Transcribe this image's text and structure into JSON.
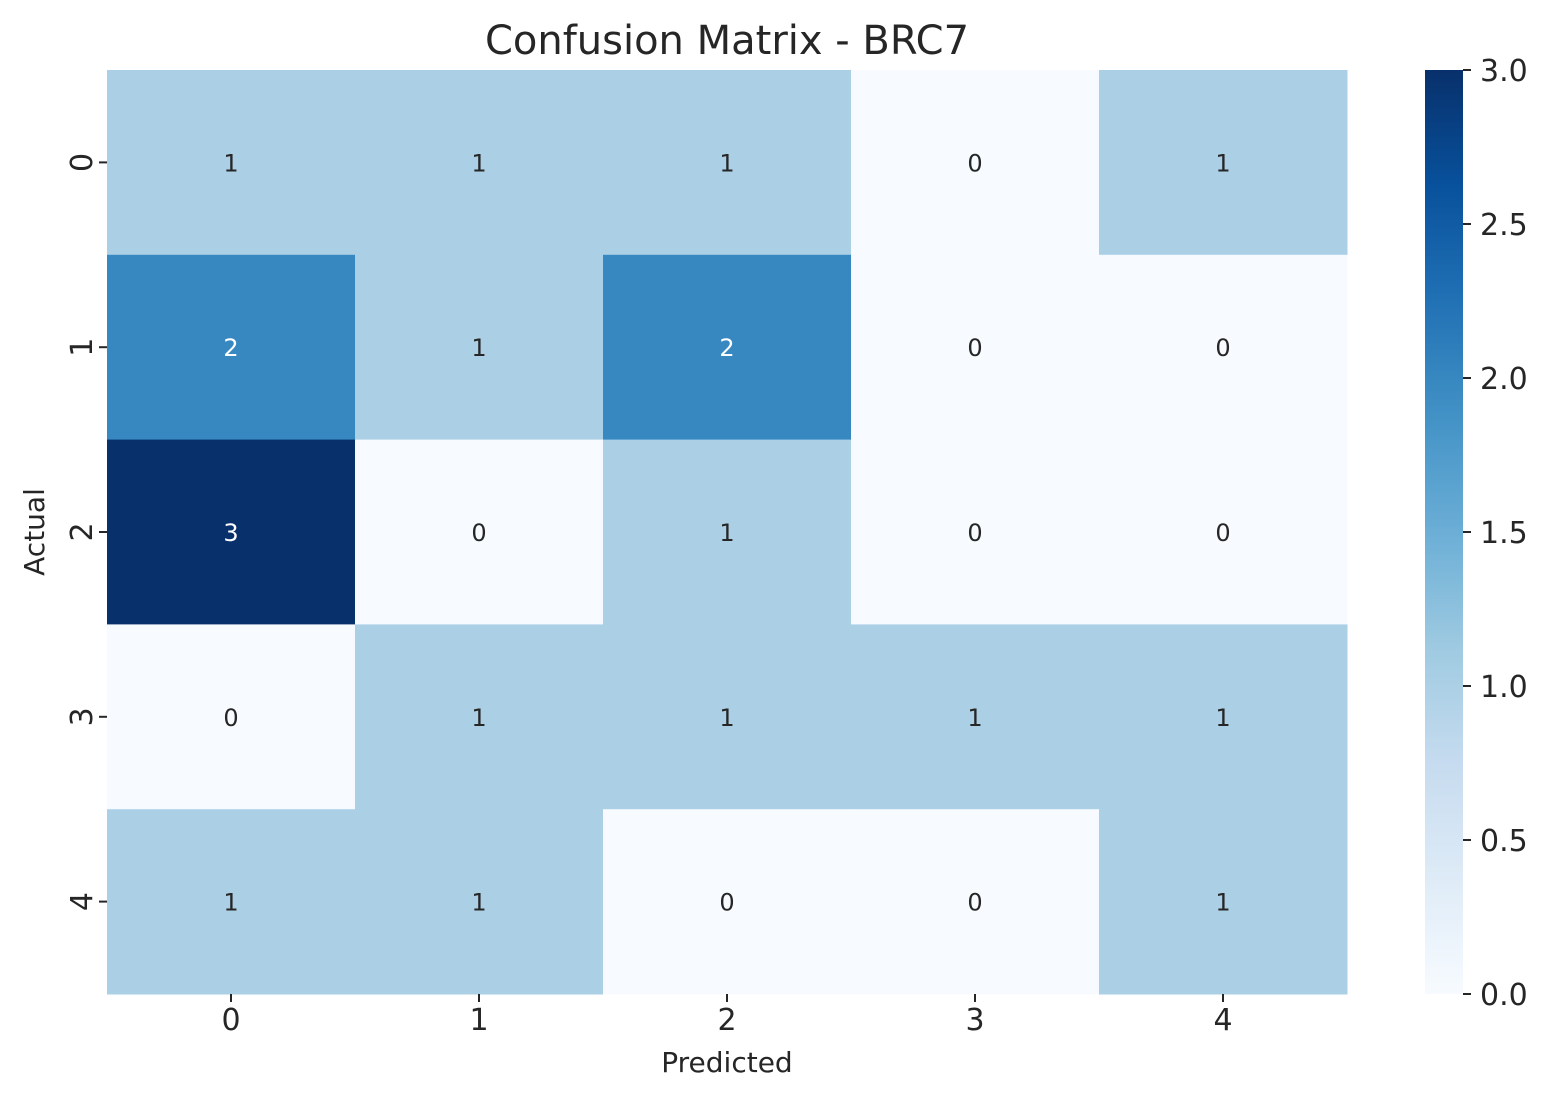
{
  "chart_data": {
    "type": "heatmap",
    "title": "Confusion Matrix - BRC7",
    "xlabel": "Predicted",
    "ylabel": "Actual",
    "x_categories": [
      "0",
      "1",
      "2",
      "3",
      "4"
    ],
    "y_categories": [
      "0",
      "1",
      "2",
      "3",
      "4"
    ],
    "values": [
      [
        1,
        1,
        1,
        0,
        1
      ],
      [
        2,
        1,
        2,
        0,
        0
      ],
      [
        3,
        0,
        1,
        0,
        0
      ],
      [
        0,
        1,
        1,
        1,
        1
      ],
      [
        1,
        1,
        0,
        0,
        1
      ]
    ],
    "colorbar": {
      "range": [
        0,
        3
      ],
      "ticks": [
        "0.0",
        "0.5",
        "1.0",
        "1.5",
        "2.0",
        "2.5",
        "3.0"
      ],
      "colormap": "Blues"
    },
    "grid": false
  }
}
